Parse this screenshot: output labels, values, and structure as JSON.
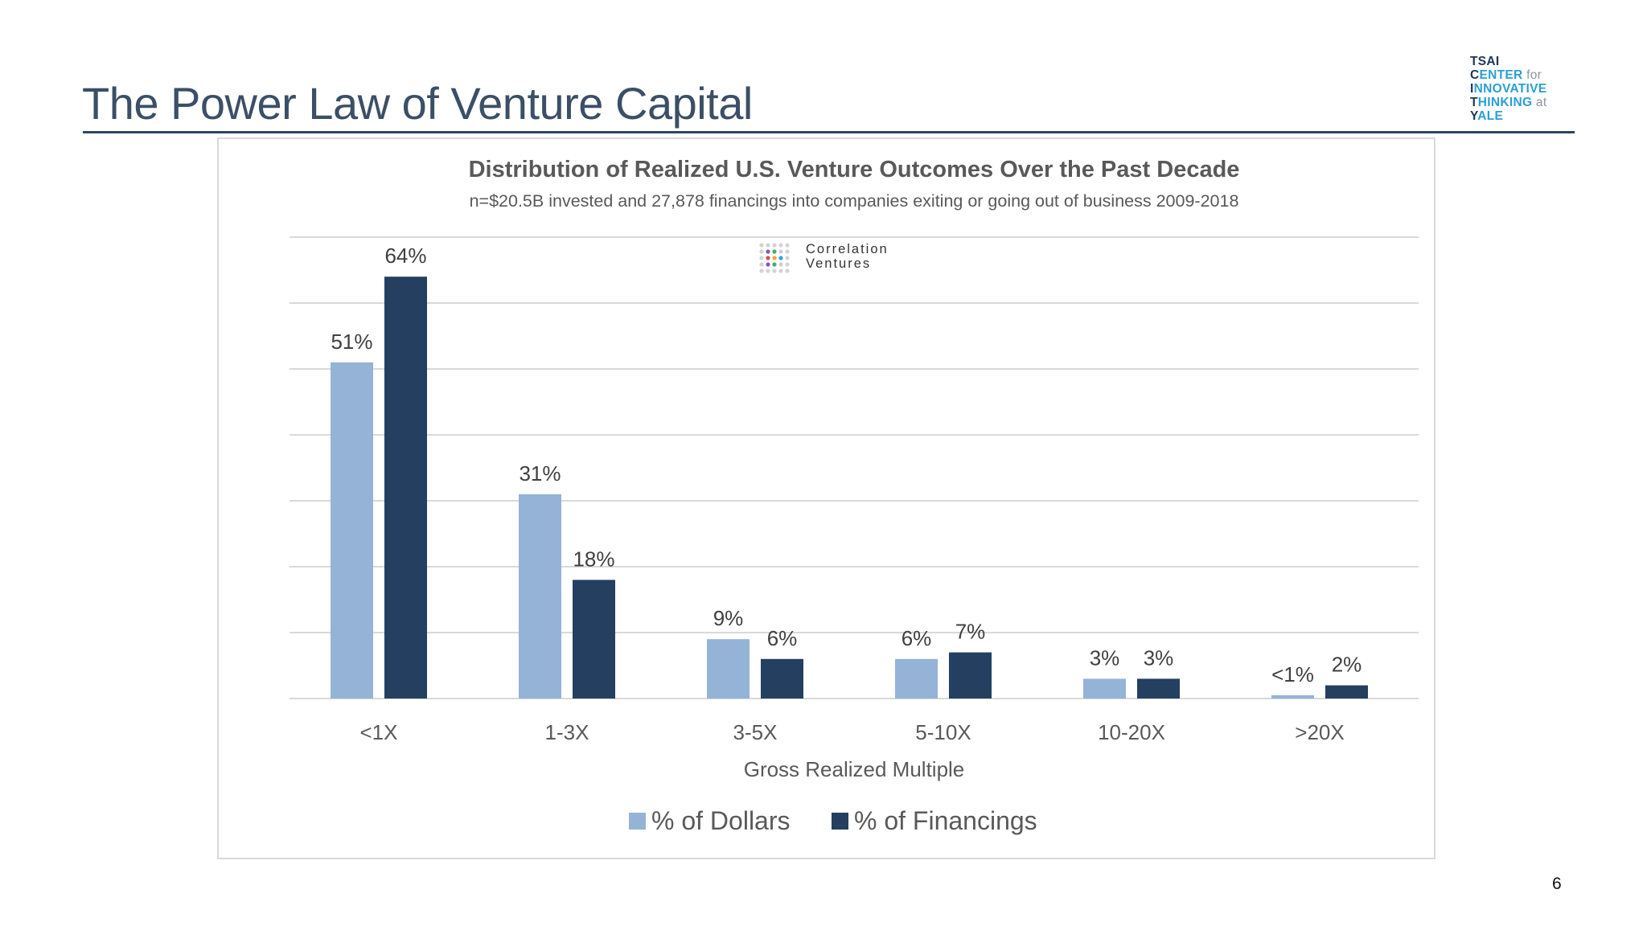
{
  "slide": {
    "title": "The Power Law of Venture Capital",
    "page_number": "6"
  },
  "logo": {
    "lines": [
      {
        "initial": "TSAI",
        "rest": "",
        "minor": ""
      },
      {
        "initial": "C",
        "rest": "ENTER",
        "minor": " for"
      },
      {
        "initial": "I",
        "rest": "NNOVATIVE",
        "minor": ""
      },
      {
        "initial": "T",
        "rest": "HINKING",
        "minor": " at"
      },
      {
        "initial": "Y",
        "rest": "ALE",
        "minor": ""
      }
    ]
  },
  "source_logo": {
    "line1": "Correlation",
    "line2": "Ventures"
  },
  "colors": {
    "dollars": "#95b3d7",
    "financings": "#243f60",
    "grid": "#d9d9d9",
    "title_text": "#595959"
  },
  "chart_data": {
    "type": "bar",
    "title": "Distribution of Realized U.S. Venture Outcomes Over the Past Decade",
    "subtitle": "n=$20.5B invested and 27,878 financings into companies exiting or going out of business 2009-2018",
    "xlabel": "Gross Realized Multiple",
    "ylabel": "",
    "ylim": [
      0,
      70
    ],
    "grid": true,
    "legend_position": "bottom",
    "categories": [
      "<1X",
      "1-3X",
      "3-5X",
      "5-10X",
      "10-20X",
      ">20X"
    ],
    "series": [
      {
        "name": "% of Dollars",
        "values": [
          51,
          31,
          9,
          6,
          3,
          0.5
        ],
        "labels": [
          "51%",
          "31%",
          "9%",
          "6%",
          "3%",
          "<1%"
        ]
      },
      {
        "name": "% of Financings",
        "values": [
          64,
          18,
          6,
          7,
          3,
          2
        ],
        "labels": [
          "64%",
          "18%",
          "6%",
          "7%",
          "3%",
          "2%"
        ]
      }
    ]
  }
}
